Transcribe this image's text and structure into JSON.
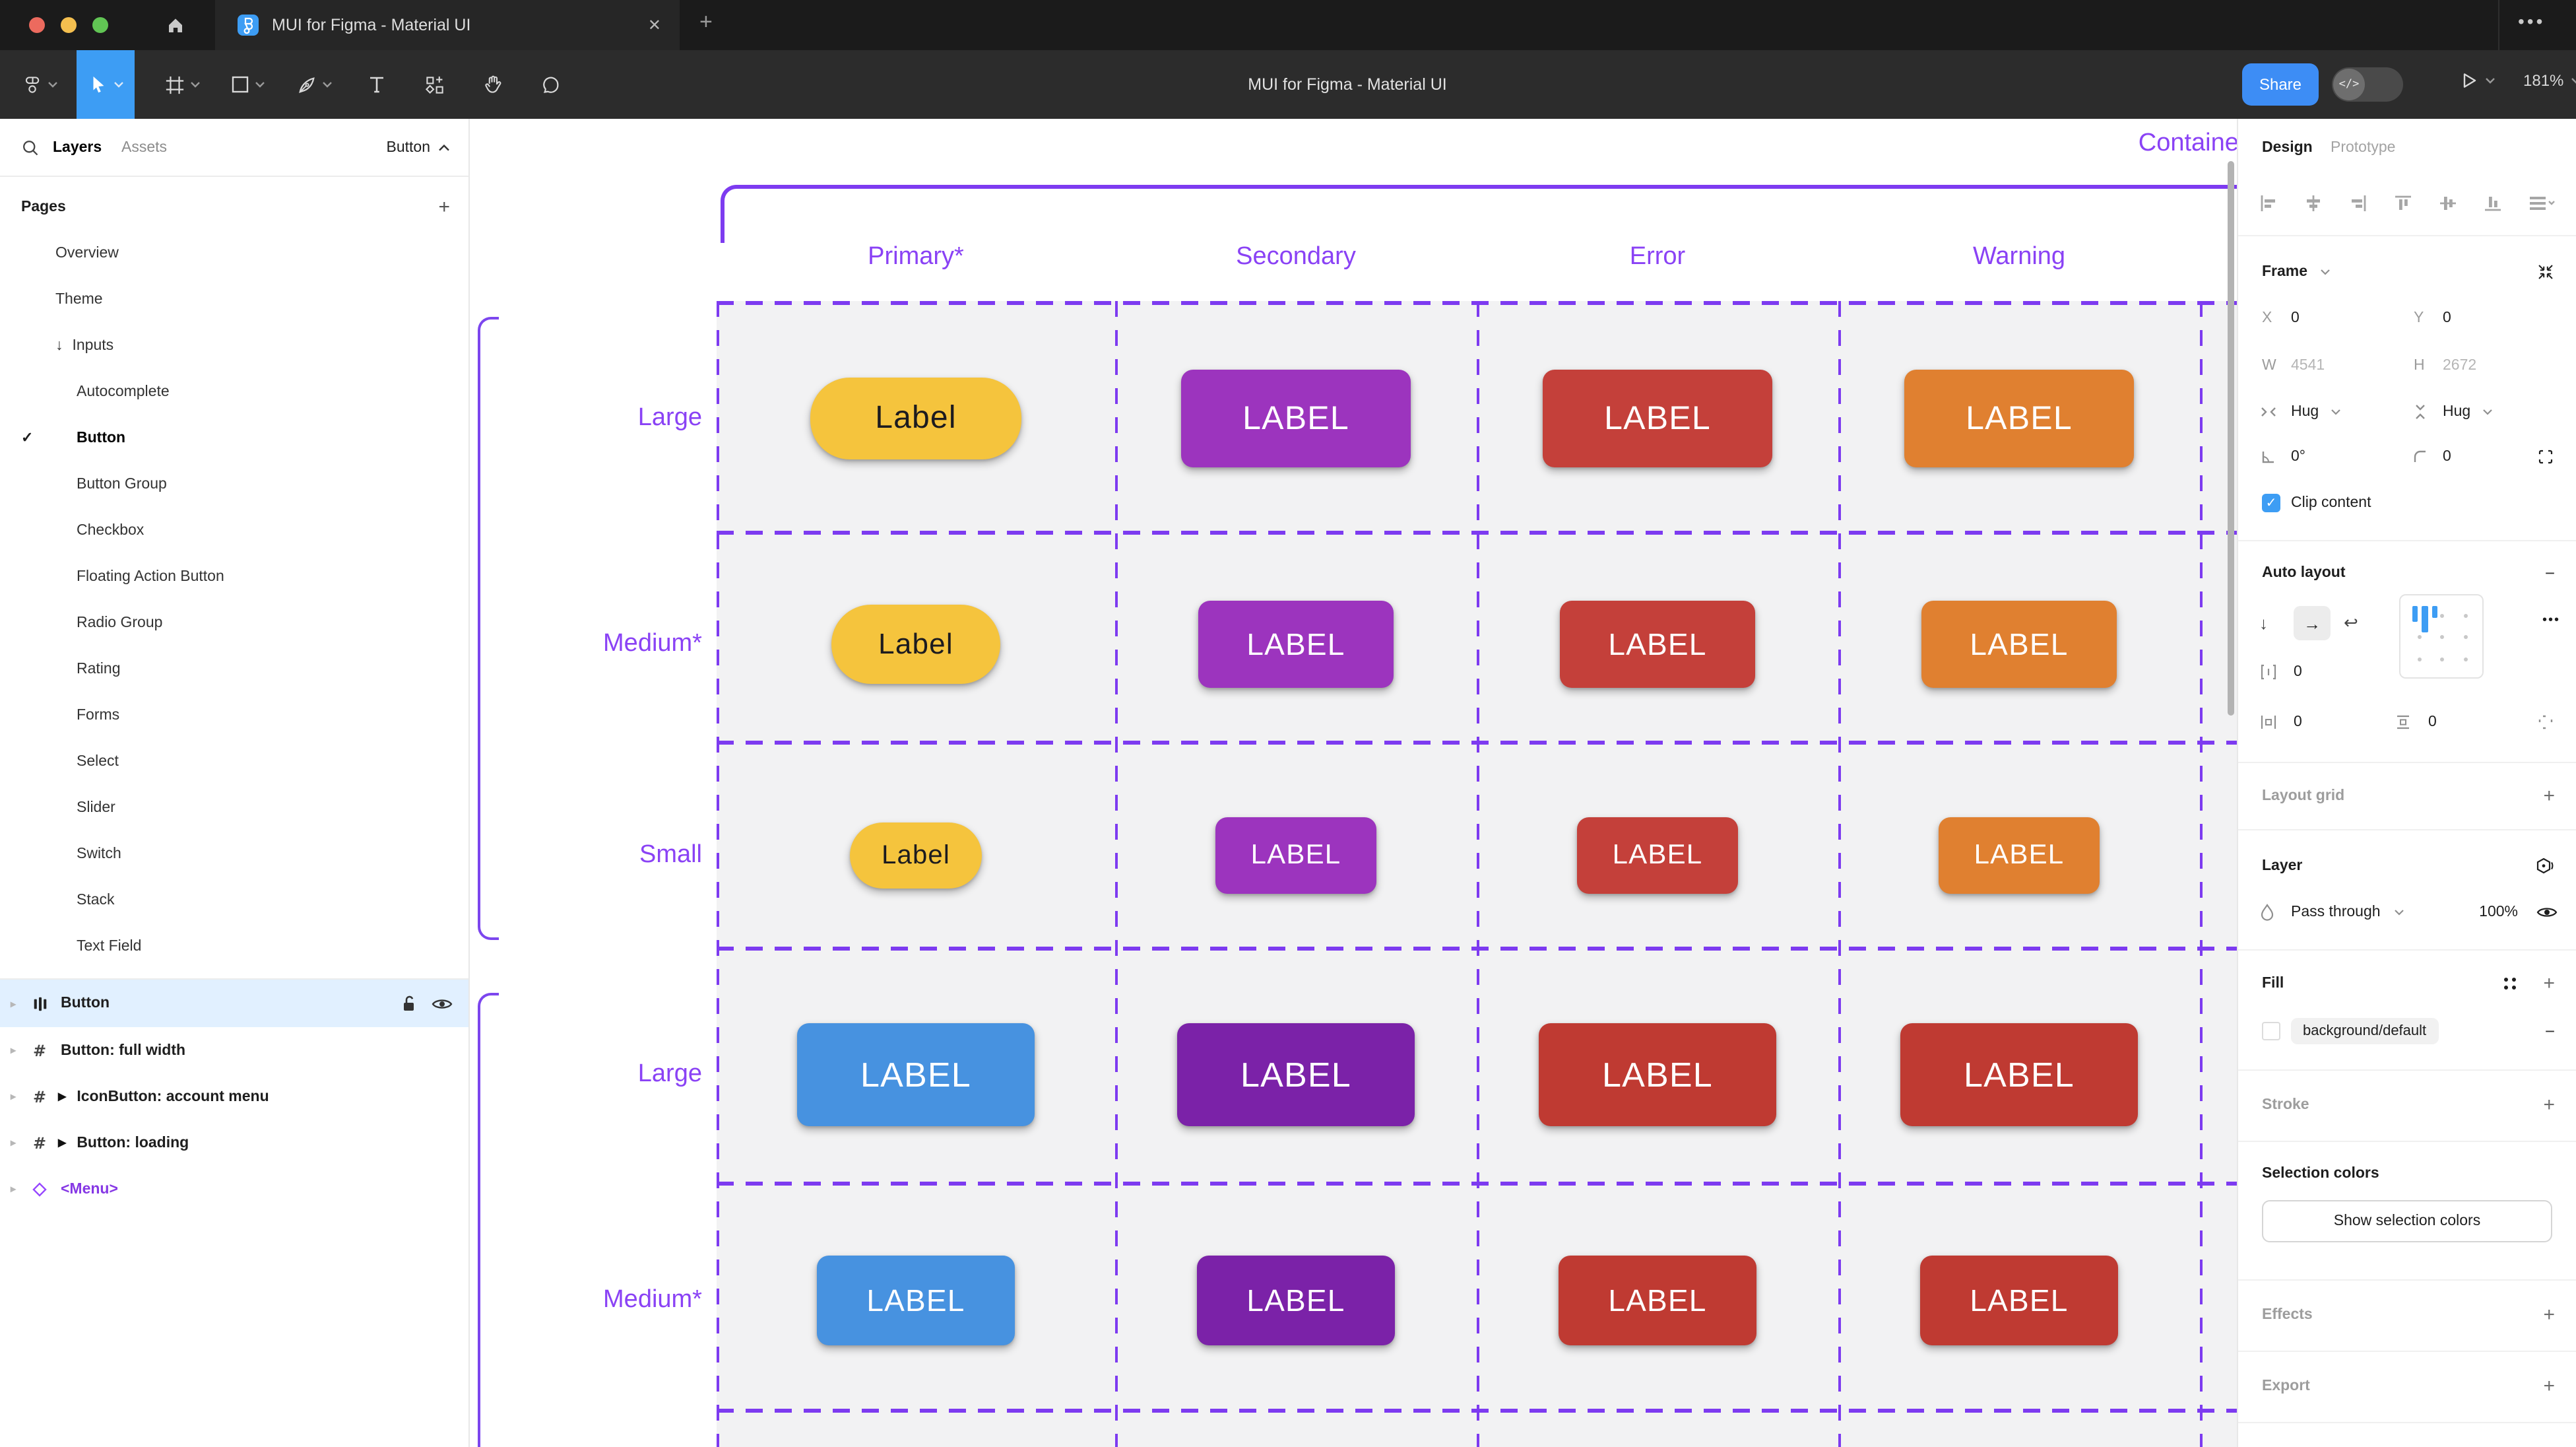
{
  "window": {
    "tab_title": "MUI for Figma - Material UI",
    "close_glyph": "✕",
    "new_tab_glyph": "+",
    "more_glyph": "•••",
    "toolbar_title": "MUI for Figma - Material UI",
    "share_label": "Share",
    "dev_toggle_glyph": "</>",
    "zoom_level": "181%",
    "traffic_colors": {
      "close": "#ec6a5e",
      "minimize": "#f4bf4f",
      "zoom": "#61c554"
    },
    "accent_blue": "#3d9df4"
  },
  "sidebar": {
    "tab_layers": "Layers",
    "tab_assets": "Assets",
    "page_indicator": "Button",
    "pages_header": "Pages",
    "pages_add_glyph": "+",
    "pages": [
      {
        "label": "Overview",
        "indent": 0
      },
      {
        "label": "Theme",
        "indent": 0
      },
      {
        "label": "Inputs",
        "indent": 0,
        "arrow": "↓"
      },
      {
        "label": "Autocomplete",
        "indent": 1
      },
      {
        "label": "Button",
        "indent": 1,
        "selected": true,
        "check": "✓"
      },
      {
        "label": "Button Group",
        "indent": 1
      },
      {
        "label": "Checkbox",
        "indent": 1
      },
      {
        "label": "Floating Action Button",
        "indent": 1
      },
      {
        "label": "Radio Group",
        "indent": 1
      },
      {
        "label": "Rating",
        "indent": 1
      },
      {
        "label": "Forms",
        "indent": 1
      },
      {
        "label": "Select",
        "indent": 1
      },
      {
        "label": "Slider",
        "indent": 1
      },
      {
        "label": "Switch",
        "indent": 1
      },
      {
        "label": "Stack",
        "indent": 1
      },
      {
        "label": "Text Field",
        "indent": 1
      }
    ],
    "layers": [
      {
        "name": "Button",
        "icon": "autolayout",
        "selected": true
      },
      {
        "name": "Button: full width",
        "icon": "frame"
      },
      {
        "name": "IconButton: account menu",
        "icon": "frame",
        "expand": true
      },
      {
        "name": "Button: loading",
        "icon": "frame",
        "expand": true
      },
      {
        "name": "<Menu>",
        "icon": "component",
        "purple": true
      }
    ]
  },
  "canvas": {
    "section_label": "Contained",
    "columns": [
      "Primary*",
      "Secondary",
      "Error",
      "Warning"
    ],
    "rows": [
      {
        "label": "Large",
        "group": 0,
        "buttons": [
          {
            "text": "Label",
            "bg": "#F5C43D",
            "fg": "#1C1B1F",
            "size": "l_pill"
          },
          {
            "text": "LABEL",
            "bg": "#9C34BE",
            "fg": "#FFFFFF",
            "size": "l_rect"
          },
          {
            "text": "LABEL",
            "bg": "#C4403A",
            "fg": "#FFFFFF",
            "size": "l_rect"
          },
          {
            "text": "LABEL",
            "bg": "#E08030",
            "fg": "#FFFFFF",
            "size": "l_rect"
          }
        ]
      },
      {
        "label": "Medium*",
        "group": 0,
        "buttons": [
          {
            "text": "Label",
            "bg": "#F5C43D",
            "fg": "#1C1B1F",
            "size": "m_pill"
          },
          {
            "text": "LABEL",
            "bg": "#9C34BE",
            "fg": "#FFFFFF",
            "size": "m_rect"
          },
          {
            "text": "LABEL",
            "bg": "#C4403A",
            "fg": "#FFFFFF",
            "size": "m_rect"
          },
          {
            "text": "LABEL",
            "bg": "#E08030",
            "fg": "#FFFFFF",
            "size": "m_rect"
          }
        ]
      },
      {
        "label": "Small",
        "group": 0,
        "buttons": [
          {
            "text": "Label",
            "bg": "#F5C43D",
            "fg": "#1C1B1F",
            "size": "s_pill"
          },
          {
            "text": "LABEL",
            "bg": "#9C34BE",
            "fg": "#FFFFFF",
            "size": "s_rect"
          },
          {
            "text": "LABEL",
            "bg": "#C4403A",
            "fg": "#FFFFFF",
            "size": "s_rect"
          },
          {
            "text": "LABEL",
            "bg": "#E08030",
            "fg": "#FFFFFF",
            "size": "s_rect"
          }
        ]
      },
      {
        "label": "Large",
        "group": 1,
        "buttons": [
          {
            "text": "LABEL",
            "bg": "#4792E0",
            "fg": "#FFFFFF",
            "size": "l2_rect"
          },
          {
            "text": "LABEL",
            "bg": "#7B22A8",
            "fg": "#FFFFFF",
            "size": "l2_rect"
          },
          {
            "text": "LABEL",
            "bg": "#BF3A32",
            "fg": "#FFFFFF",
            "size": "l2_rect"
          },
          {
            "text": "LABEL",
            "bg": "#BF3A32",
            "fg": "#FFFFFF",
            "size": "l2_rect"
          }
        ]
      },
      {
        "label": "Medium*",
        "group": 1,
        "buttons": [
          {
            "text": "LABEL",
            "bg": "#4792E0",
            "fg": "#FFFFFF",
            "size": "m2_rect"
          },
          {
            "text": "LABEL",
            "bg": "#7B22A8",
            "fg": "#FFFFFF",
            "size": "m2_rect"
          },
          {
            "text": "LABEL",
            "bg": "#BF3A32",
            "fg": "#FFFFFF",
            "size": "m2_rect"
          },
          {
            "text": "LABEL",
            "bg": "#BF3A32",
            "fg": "#FFFFFF",
            "size": "m2_rect"
          }
        ]
      }
    ],
    "accent_text": "#8a42f5",
    "accent_line": "#7d3bf0"
  },
  "right_panel": {
    "tabs": {
      "design": "Design",
      "prototype": "Prototype"
    },
    "frame": {
      "title": "Frame",
      "x_label": "X",
      "x": "0",
      "y_label": "Y",
      "y": "0",
      "w_label": "W",
      "w": "4541",
      "h_label": "H",
      "h": "2672",
      "hug_h": "Hug",
      "hug_v": "Hug",
      "rotation": "0°",
      "radius": "0",
      "clip_label": "Clip content"
    },
    "auto_layout": {
      "title": "Auto layout",
      "gap": "0",
      "pad_h": "0",
      "pad_v": "0",
      "more_glyph": "•••"
    },
    "layout_grid": {
      "title": "Layout grid"
    },
    "layer": {
      "title": "Layer",
      "blend": "Pass through",
      "opacity": "100%"
    },
    "fill": {
      "title": "Fill",
      "token": "background/default"
    },
    "stroke": {
      "title": "Stroke"
    },
    "selection": {
      "title": "Selection colors",
      "button_label": "Show selection colors"
    },
    "effects": {
      "title": "Effects"
    },
    "export": {
      "title": "Export"
    }
  }
}
